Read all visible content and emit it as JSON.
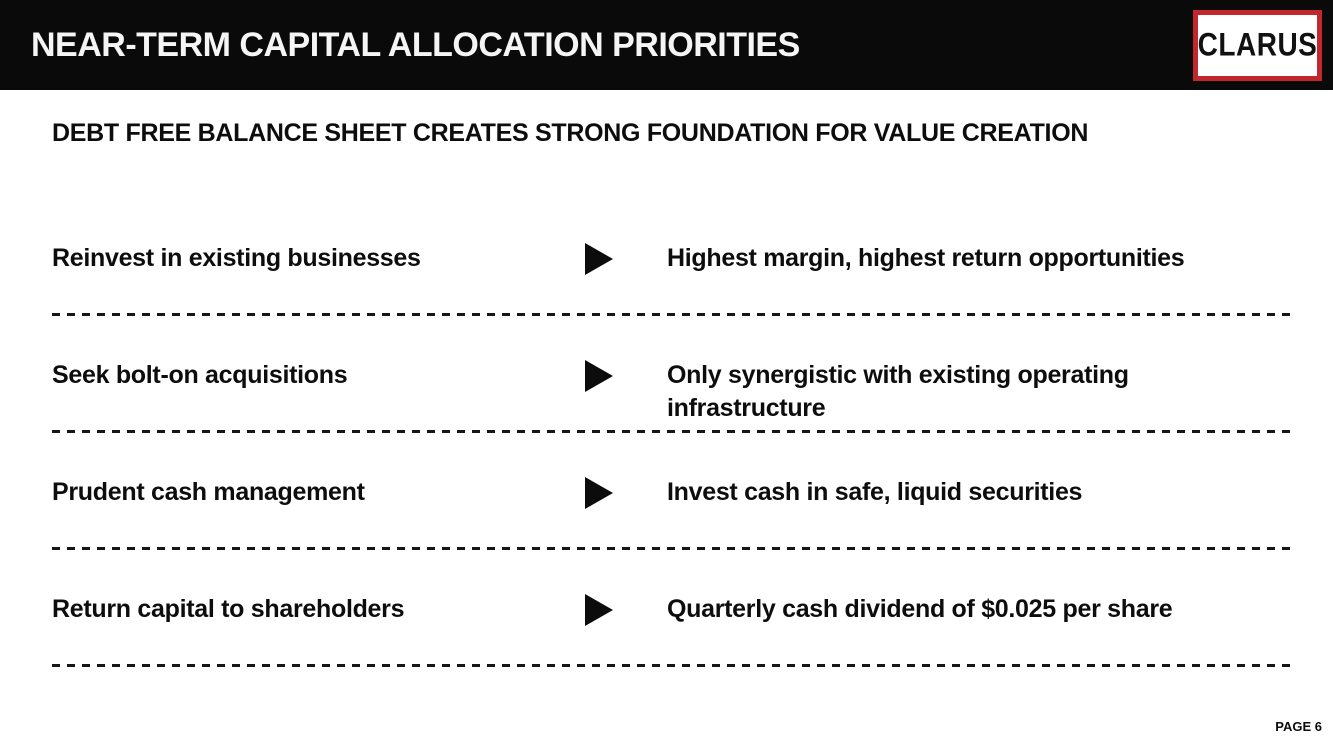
{
  "header": {
    "title": "NEAR-TERM CAPITAL ALLOCATION PRIORITIES",
    "bar_color": "#0a0a0a",
    "logo": {
      "text": "CLARUS",
      "border_color": "#c1272d",
      "background": "#ffffff"
    }
  },
  "subtitle": "DEBT FREE BALANCE SHEET CREATES STRONG FOUNDATION FOR VALUE CREATION",
  "priorities": [
    {
      "label": "Reinvest in existing businesses",
      "detail": "Highest margin, highest return opportunities"
    },
    {
      "label": "Seek bolt-on acquisitions",
      "detail": "Only synergistic with existing operating infrastructure"
    },
    {
      "label": "Prudent cash management",
      "detail": "Invest cash in safe, liquid securities"
    },
    {
      "label": "Return capital to shareholders",
      "detail": "Quarterly cash dividend of $0.025 per share"
    }
  ],
  "icons": {
    "row_marker": "right-triangle-arrow"
  },
  "footer": {
    "page_label": "PAGE 6"
  }
}
